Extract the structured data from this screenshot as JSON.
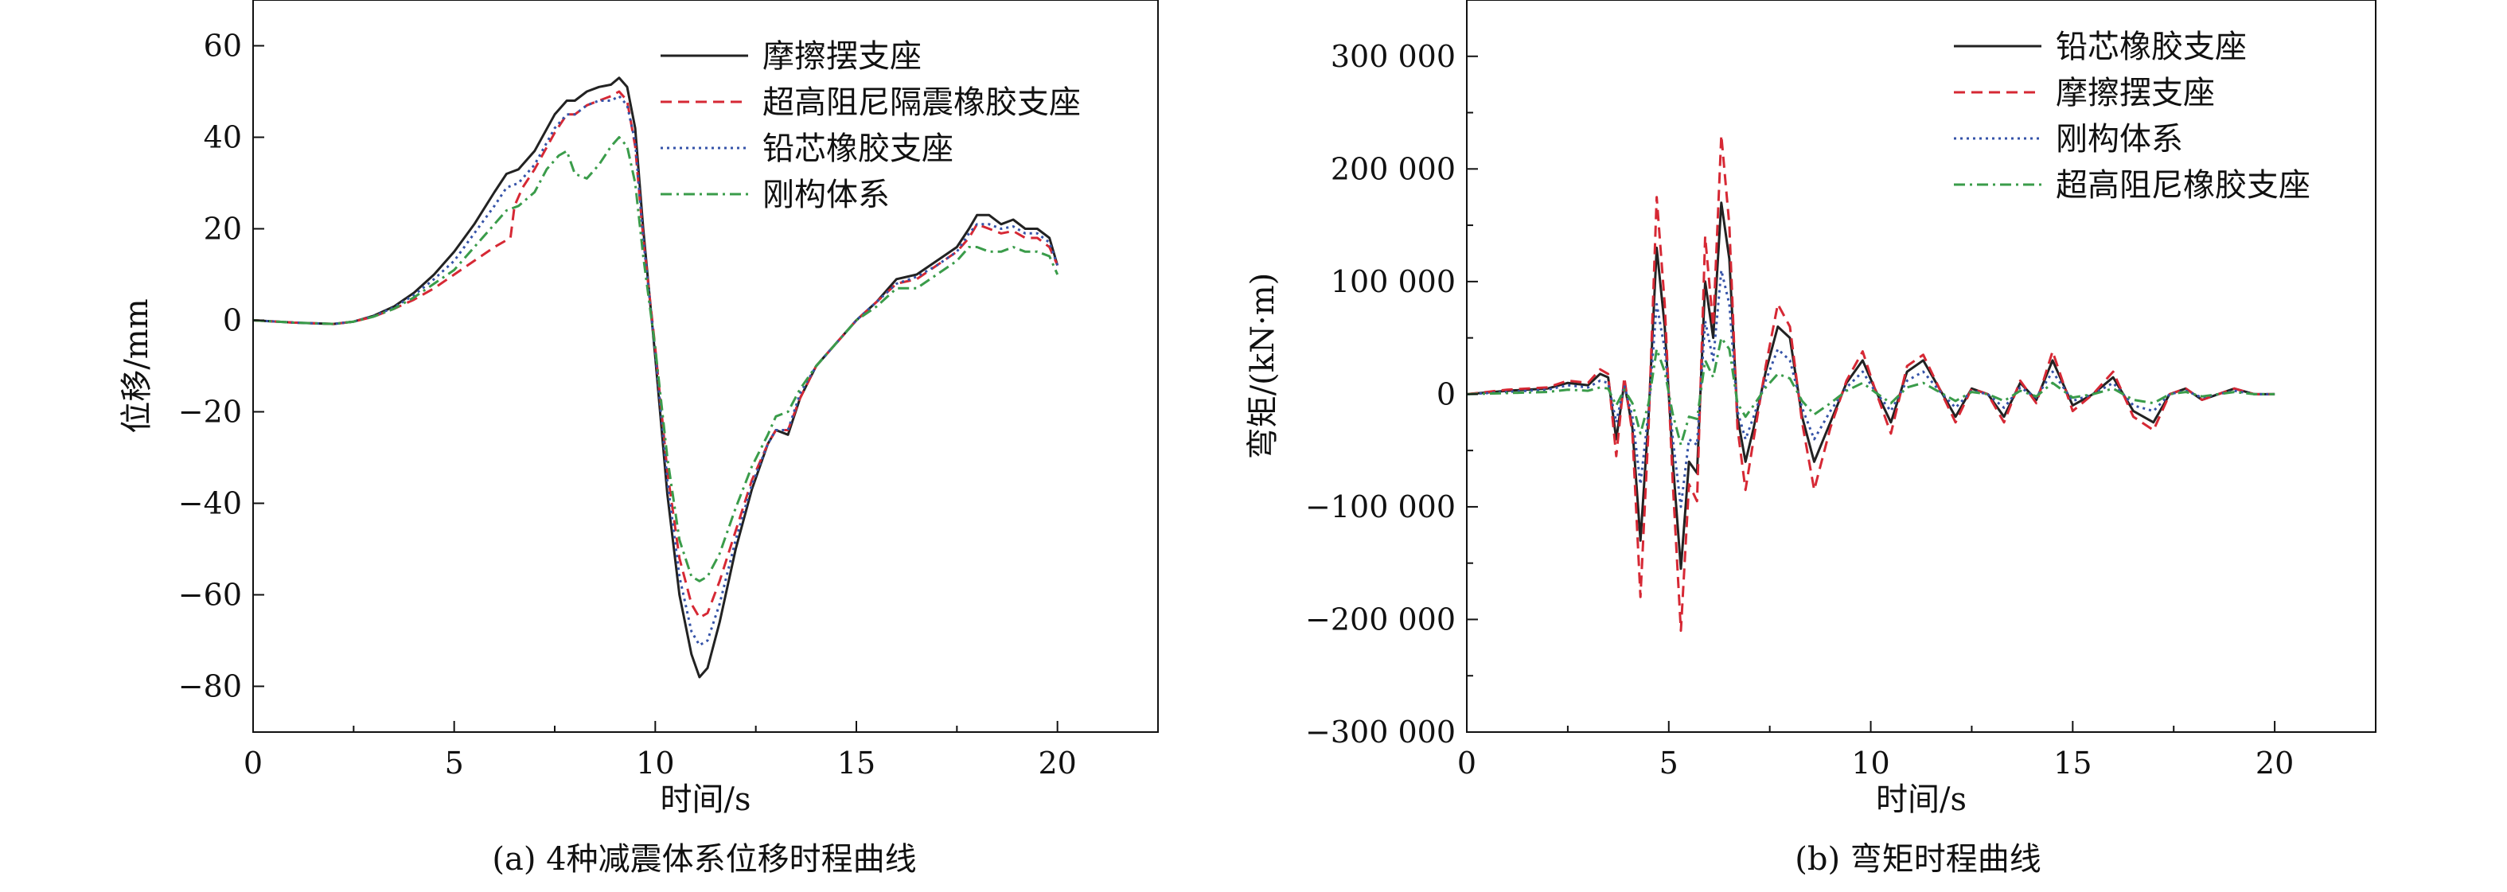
{
  "chart_data": [
    {
      "type": "line",
      "caption": "(a) 4种减震体系位移时程曲线",
      "xlabel": "时间/s",
      "ylabel": "位移/mm",
      "xlim": [
        0,
        22.5
      ],
      "ylim": [
        -90,
        70
      ],
      "xticks": [
        0,
        5,
        10,
        15,
        20
      ],
      "xtick_labels": [
        "0",
        "5",
        "10",
        "15",
        "20"
      ],
      "yticks": [
        -80,
        -60,
        -40,
        -20,
        0,
        20,
        40,
        60
      ],
      "ytick_labels": [
        "−80",
        "−60",
        "−40",
        "−20",
        "0",
        "20",
        "40",
        "60"
      ],
      "legend_position": "top-right",
      "series": [
        {
          "name": "摩擦摆支座",
          "color": "#222222",
          "dash": "solid",
          "x": [
            0,
            1,
            2,
            2.5,
            3,
            3.5,
            4,
            4.5,
            5,
            5.5,
            6,
            6.3,
            6.6,
            7,
            7.5,
            7.8,
            8,
            8.3,
            8.6,
            8.9,
            9.1,
            9.3,
            9.5,
            9.7,
            10,
            10.3,
            10.6,
            10.9,
            11.1,
            11.3,
            11.6,
            12,
            12.4,
            12.8,
            13,
            13.3,
            13.6,
            14,
            14.5,
            15,
            15.5,
            16,
            16.5,
            17,
            17.5,
            17.8,
            18,
            18.3,
            18.6,
            18.9,
            19.2,
            19.5,
            19.8,
            20
          ],
          "y": [
            0,
            -0.5,
            -0.8,
            -0.3,
            1,
            3,
            6,
            10,
            15,
            21,
            28,
            32,
            33,
            37,
            45,
            48,
            48,
            50,
            51,
            51.5,
            53,
            51,
            42,
            20,
            -8,
            -38,
            -60,
            -73,
            -78,
            -76,
            -66,
            -50,
            -37,
            -27,
            -24,
            -25,
            -17,
            -10,
            -5,
            0,
            4,
            9,
            10,
            13,
            16,
            20,
            23,
            23,
            21,
            22,
            20,
            20,
            18,
            12
          ]
        },
        {
          "name": "超高阻尼隔震橡胶支座",
          "color": "#d62834",
          "dash": "dashed",
          "x": [
            0,
            1,
            2,
            2.5,
            3,
            3.5,
            4,
            4.5,
            5,
            5.5,
            6,
            6.4,
            6.5,
            6.7,
            7,
            7.5,
            7.8,
            8,
            8.3,
            8.6,
            8.9,
            9.1,
            9.3,
            9.5,
            9.7,
            10,
            10.3,
            10.6,
            10.9,
            11.1,
            11.3,
            11.6,
            12,
            12.4,
            12.8,
            13,
            13.3,
            13.6,
            14,
            14.5,
            15,
            15.5,
            16,
            16.5,
            17,
            17.5,
            17.8,
            18,
            18.3,
            18.6,
            18.9,
            19.2,
            19.5,
            19.8,
            20
          ],
          "y": [
            0,
            -0.5,
            -0.8,
            -0.3,
            0.8,
            2.5,
            4.5,
            7,
            10,
            13,
            16,
            18,
            25,
            29,
            33,
            41,
            45,
            45,
            47,
            48,
            49,
            50,
            48,
            38,
            18,
            -6,
            -33,
            -52,
            -62,
            -65,
            -64,
            -57,
            -46,
            -35,
            -27,
            -24,
            -24,
            -17,
            -10,
            -5,
            0,
            4,
            8,
            9,
            12,
            15,
            18,
            21,
            20,
            19,
            19.5,
            18,
            18,
            16,
            12
          ]
        },
        {
          "name": "铅芯橡胶支座",
          "color": "#3553a8",
          "dash": "dotted",
          "x": [
            0,
            1,
            2,
            2.5,
            3,
            3.5,
            4,
            4.5,
            5,
            5.5,
            6,
            6.3,
            6.6,
            7,
            7.5,
            7.8,
            8,
            8.3,
            8.6,
            8.9,
            9.1,
            9.3,
            9.5,
            9.7,
            10,
            10.3,
            10.6,
            10.9,
            11.1,
            11.3,
            11.6,
            12,
            12.4,
            12.8,
            13,
            13.3,
            13.6,
            14,
            14.5,
            15,
            15.5,
            16,
            16.5,
            17,
            17.5,
            17.8,
            18,
            18.3,
            18.6,
            18.9,
            19.2,
            19.5,
            19.8,
            20
          ],
          "y": [
            0,
            -0.5,
            -0.8,
            -0.3,
            0.9,
            2.8,
            5.5,
            9,
            13,
            19,
            25,
            29,
            30,
            34,
            42,
            45,
            45,
            47,
            48,
            48,
            49,
            47,
            39,
            18,
            -7,
            -35,
            -56,
            -68,
            -71,
            -70,
            -62,
            -48,
            -36,
            -27,
            -24,
            -24,
            -16,
            -10,
            -5,
            0,
            4,
            8,
            9.5,
            12,
            15,
            19,
            21,
            21,
            20,
            20.5,
            19,
            19,
            17,
            12
          ]
        },
        {
          "name": "刚构体系",
          "color": "#3a9c4a",
          "dash": "dashdot",
          "x": [
            0,
            1,
            2,
            2.5,
            3,
            3.5,
            4,
            4.5,
            5,
            5.5,
            6,
            6.3,
            6.6,
            7,
            7.3,
            7.6,
            7.8,
            8,
            8.3,
            8.6,
            8.9,
            9.1,
            9.3,
            9.5,
            9.7,
            10,
            10.3,
            10.6,
            10.9,
            11.1,
            11.3,
            11.6,
            12,
            12.4,
            12.8,
            13,
            13.3,
            13.6,
            14,
            14.5,
            15,
            15.5,
            16,
            16.5,
            17,
            17.5,
            17.8,
            18,
            18.3,
            18.6,
            18.9,
            19.2,
            19.5,
            19.8,
            20
          ],
          "y": [
            0,
            -0.5,
            -0.8,
            -0.3,
            0.8,
            2.5,
            5,
            8,
            11,
            16,
            21,
            24,
            25,
            28,
            33,
            36,
            37,
            32,
            31,
            34,
            38,
            40,
            38,
            30,
            14,
            -6,
            -30,
            -48,
            -56,
            -57,
            -56,
            -51,
            -41,
            -32,
            -25,
            -21,
            -20,
            -15,
            -10,
            -5,
            0,
            3,
            7,
            7,
            10,
            13,
            16,
            16,
            15,
            15,
            16,
            15,
            15,
            14,
            10
          ]
        }
      ]
    },
    {
      "type": "line",
      "caption": "(b) 弯矩时程曲线",
      "xlabel": "时间/s",
      "ylabel": "弯矩/(kN·m)",
      "xlim": [
        0,
        22.5
      ],
      "ylim": [
        -300000,
        350000
      ],
      "xticks": [
        0,
        5,
        10,
        15,
        20
      ],
      "xtick_labels": [
        "0",
        "5",
        "10",
        "15",
        "20"
      ],
      "yticks": [
        -300000,
        -200000,
        -100000,
        0,
        100000,
        200000,
        300000
      ],
      "ytick_labels": [
        "−300 000",
        "−200 000",
        "−100 000",
        "0",
        "100 000",
        "200 000",
        "300 000"
      ],
      "legend_position": "top-right",
      "series": [
        {
          "name": "铅芯橡胶支座",
          "color": "#222222",
          "dash": "solid",
          "x": [
            0,
            1,
            2,
            2.5,
            3,
            3.3,
            3.5,
            3.7,
            3.9,
            4.1,
            4.3,
            4.5,
            4.7,
            4.9,
            5.1,
            5.3,
            5.5,
            5.7,
            5.9,
            6.1,
            6.3,
            6.5,
            6.7,
            6.9,
            7.1,
            7.4,
            7.7,
            8,
            8.3,
            8.6,
            9,
            9.4,
            9.8,
            10.1,
            10.5,
            10.9,
            11.3,
            11.7,
            12.1,
            12.5,
            12.9,
            13.3,
            13.7,
            14.1,
            14.5,
            15,
            15.5,
            16,
            16.5,
            17,
            17.4,
            17.8,
            18.2,
            18.6,
            19,
            19.5,
            20
          ],
          "y": [
            0,
            3000,
            5000,
            10000,
            8000,
            18000,
            15000,
            -40000,
            10000,
            -30000,
            -130000,
            -20000,
            130000,
            60000,
            -60000,
            -155000,
            -60000,
            -70000,
            100000,
            50000,
            170000,
            120000,
            -20000,
            -60000,
            -30000,
            20000,
            60000,
            50000,
            -20000,
            -60000,
            -25000,
            10000,
            30000,
            5000,
            -25000,
            20000,
            30000,
            5000,
            -20000,
            5000,
            0,
            -20000,
            10000,
            -5000,
            30000,
            -10000,
            0,
            15000,
            -15000,
            -25000,
            0,
            5000,
            -5000,
            0,
            5000,
            0,
            0
          ]
        },
        {
          "name": "摩擦摆支座",
          "color": "#d62834",
          "dash": "dashed",
          "x": [
            0,
            1,
            2,
            2.5,
            3,
            3.3,
            3.5,
            3.7,
            3.9,
            4.1,
            4.3,
            4.5,
            4.7,
            4.9,
            5.1,
            5.3,
            5.5,
            5.7,
            5.9,
            6.1,
            6.3,
            6.5,
            6.7,
            6.9,
            7.1,
            7.4,
            7.7,
            8,
            8.3,
            8.6,
            9,
            9.4,
            9.8,
            10.1,
            10.5,
            10.9,
            11.3,
            11.7,
            12.1,
            12.5,
            12.9,
            13.3,
            13.7,
            14.1,
            14.5,
            15,
            15.5,
            16,
            16.5,
            17,
            17.4,
            17.8,
            18.2,
            18.6,
            19,
            19.5,
            20
          ],
          "y": [
            0,
            4000,
            6000,
            12000,
            10000,
            22000,
            18000,
            -55000,
            15000,
            -35000,
            -180000,
            -30000,
            175000,
            80000,
            -80000,
            -210000,
            -80000,
            -95000,
            140000,
            60000,
            230000,
            150000,
            -30000,
            -85000,
            -40000,
            25000,
            80000,
            60000,
            -25000,
            -85000,
            -30000,
            12000,
            38000,
            5000,
            -35000,
            25000,
            35000,
            5000,
            -25000,
            5000,
            0,
            -25000,
            12000,
            -8000,
            38000,
            -15000,
            0,
            20000,
            -20000,
            -32000,
            0,
            5000,
            -5000,
            0,
            5000,
            0,
            0
          ]
        },
        {
          "name": "刚构体系",
          "color": "#3553a8",
          "dash": "dotted",
          "x": [
            0,
            1,
            2,
            2.5,
            3,
            3.3,
            3.5,
            3.7,
            3.9,
            4.1,
            4.3,
            4.5,
            4.7,
            4.9,
            5.1,
            5.3,
            5.5,
            5.7,
            5.9,
            6.1,
            6.3,
            6.5,
            6.7,
            6.9,
            7.1,
            7.4,
            7.7,
            8,
            8.3,
            8.6,
            9,
            9.4,
            9.8,
            10.1,
            10.5,
            10.9,
            11.3,
            11.7,
            12.1,
            12.5,
            12.9,
            13.3,
            13.7,
            14.1,
            14.5,
            15,
            15.5,
            16,
            16.5,
            17,
            17.4,
            17.8,
            18.2,
            18.6,
            19,
            19.5,
            20
          ],
          "y": [
            0,
            2000,
            4000,
            8000,
            6000,
            12000,
            10000,
            -25000,
            8000,
            -20000,
            -80000,
            -15000,
            80000,
            40000,
            -40000,
            -100000,
            -40000,
            -45000,
            65000,
            30000,
            110000,
            80000,
            -15000,
            -40000,
            -20000,
            12000,
            40000,
            30000,
            -12000,
            -40000,
            -15000,
            6000,
            20000,
            3000,
            -15000,
            12000,
            20000,
            3000,
            -12000,
            3000,
            0,
            -12000,
            6000,
            -3000,
            20000,
            -6000,
            0,
            10000,
            -10000,
            -15000,
            0,
            3000,
            -3000,
            0,
            3000,
            0,
            0
          ]
        },
        {
          "name": "超高阻尼橡胶支座",
          "color": "#3a9c4a",
          "dash": "dashdot",
          "x": [
            0,
            1,
            2,
            2.5,
            3,
            3.3,
            3.5,
            3.7,
            3.9,
            4.1,
            4.3,
            4.5,
            4.7,
            4.9,
            5.1,
            5.3,
            5.5,
            5.7,
            5.9,
            6.1,
            6.3,
            6.5,
            6.7,
            6.9,
            7.1,
            7.4,
            7.7,
            8,
            8.3,
            8.6,
            9,
            9.4,
            9.8,
            10.1,
            10.5,
            10.9,
            11.3,
            11.7,
            12.1,
            12.5,
            12.9,
            13.3,
            13.7,
            14.1,
            14.5,
            15,
            15.5,
            16,
            16.5,
            17,
            17.4,
            17.8,
            18.2,
            18.6,
            19,
            19.5,
            20
          ],
          "y": [
            0,
            1000,
            2000,
            4000,
            3000,
            6000,
            5000,
            -10000,
            4000,
            -8000,
            -35000,
            -8000,
            40000,
            20000,
            -18000,
            -45000,
            -20000,
            -22000,
            30000,
            15000,
            50000,
            40000,
            -8000,
            -20000,
            -10000,
            6000,
            18000,
            14000,
            -6000,
            -18000,
            -8000,
            3000,
            10000,
            2000,
            -8000,
            6000,
            10000,
            2000,
            -6000,
            2000,
            0,
            -6000,
            3000,
            -2000,
            10000,
            -3000,
            0,
            5000,
            -5000,
            -8000,
            0,
            2000,
            -2000,
            0,
            2000,
            0,
            0
          ]
        }
      ]
    }
  ]
}
